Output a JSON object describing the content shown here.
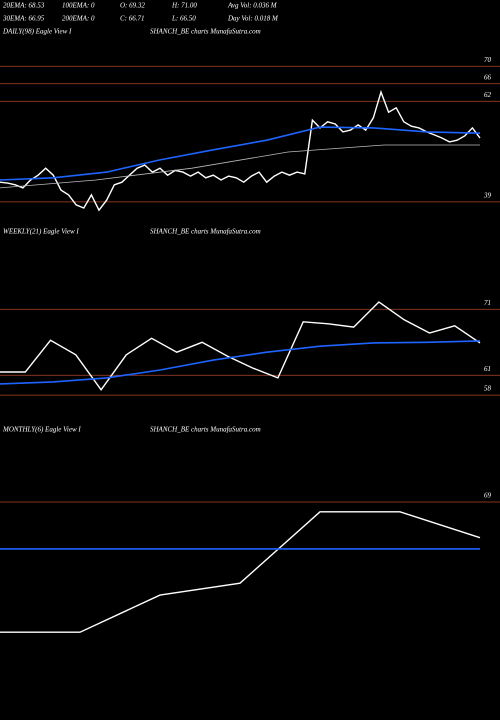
{
  "header": {
    "rows": [
      [
        "20EMA: 68.53",
        "100EMA: 0",
        "O: 69.32",
        "H: 71.00",
        "Avg Vol: 0.036  M"
      ],
      [
        "30EMA: 66.95",
        "200EMA: 0",
        "C: 66.71",
        "L: 66.50",
        "Day Vol: 0.018  M"
      ]
    ]
  },
  "chart_data": [
    {
      "type": "line",
      "title": "DAILY(98) Eagle  View  I",
      "subtitle": "SHANCH_BE charts MunafaSutra.com",
      "ylim": [
        36,
        76
      ],
      "yticks": [
        70,
        66,
        62,
        39
      ],
      "series": [
        {
          "color": "#ffffff",
          "values": [
            43.5,
            43.3,
            42.9,
            42.2,
            44.0,
            45.1,
            46.7,
            45.1,
            41.7,
            40.6,
            38.3,
            37.6,
            40.6,
            37.1,
            39.4,
            42.9,
            43.5,
            45.1,
            46.7,
            47.4,
            45.8,
            46.7,
            45.1,
            46.2,
            45.8,
            44.9,
            45.8,
            44.5,
            45.1,
            44.0,
            44.9,
            44.5,
            43.5,
            44.9,
            45.8,
            43.5,
            44.9,
            45.8,
            45.1,
            45.8,
            45.4,
            57.7,
            55.9,
            57.3,
            56.8,
            55.0,
            55.4,
            56.6,
            55.4,
            58.2,
            64.1,
            59.5,
            60.5,
            57.3,
            56.3,
            55.9,
            55.0,
            54.3,
            53.6,
            52.7,
            53.1,
            54.1,
            55.9,
            53.6
          ]
        },
        {
          "color": "#1e64ff",
          "values": [
            44.0,
            44.5,
            45.8,
            48.6,
            50.9,
            53.1,
            56.1,
            55.9,
            55.0,
            54.7
          ]
        },
        {
          "color": "#bbbbbb",
          "values": [
            42.2,
            44.0,
            46.7,
            50.4,
            52.0,
            52.0
          ]
        }
      ]
    },
    {
      "type": "line",
      "title": "WEEKLY(21) Eagle  View  I",
      "subtitle": "SHANCH_BE charts MunafaSutra.com",
      "ylim": [
        56.5,
        83
      ],
      "yticks": [
        71,
        61,
        58
      ],
      "series": [
        {
          "color": "#ffffff",
          "values": [
            61.5,
            61.5,
            66.3,
            64.1,
            58.8,
            64.1,
            66.6,
            64.5,
            66.0,
            63.9,
            62.1,
            60.6,
            69.1,
            68.8,
            68.3,
            72.1,
            69.4,
            67.4,
            68.5,
            65.9
          ]
        },
        {
          "color": "#1e64ff",
          "values": [
            59.7,
            60.0,
            60.6,
            61.8,
            63.3,
            64.5,
            65.4,
            65.9,
            66.0,
            66.2
          ]
        }
      ]
    },
    {
      "type": "line",
      "title": "MONTHLY(6) Eagle  View  I",
      "subtitle": "SHANCH_BE charts MunafaSutra.com",
      "ylim": [
        40,
        80
      ],
      "yticks": [
        69
      ],
      "series": [
        {
          "color": "#ffffff",
          "values": [
            50.4,
            50.4,
            55.7,
            57.4,
            67.6,
            67.6,
            63.9
          ]
        },
        {
          "color": "#1e64ff",
          "values": [
            62.3,
            62.3
          ]
        }
      ]
    }
  ]
}
